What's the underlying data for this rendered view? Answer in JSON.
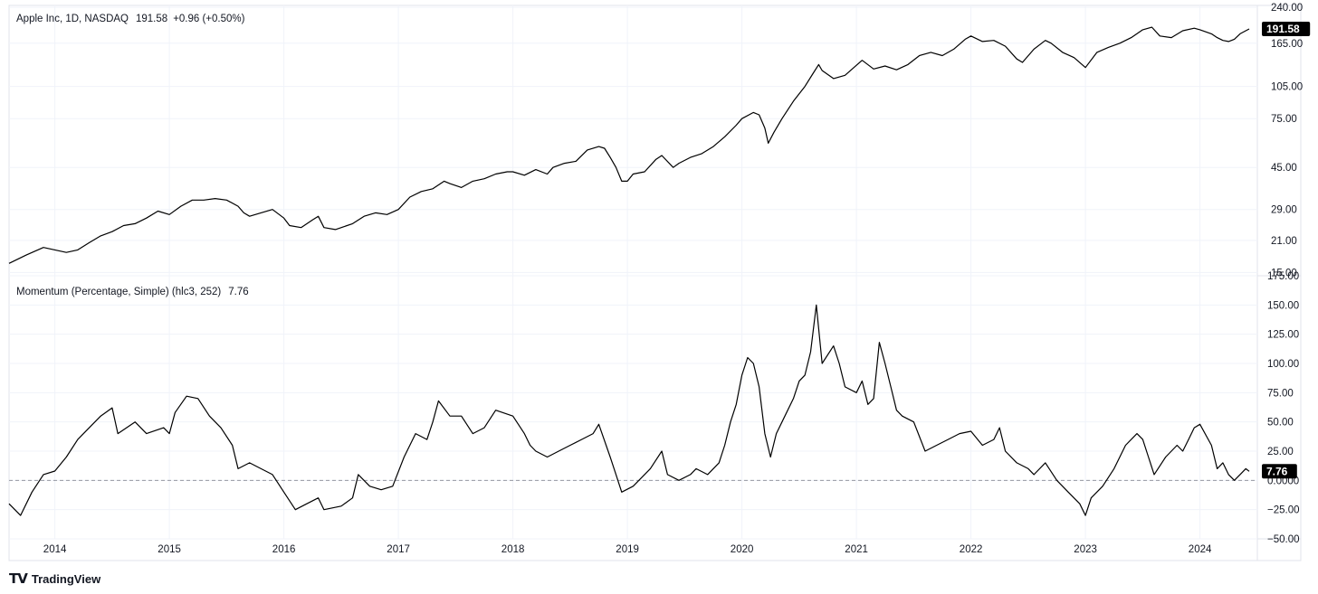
{
  "chart_data": [
    {
      "type": "line",
      "title": "Apple Inc, 1D, NASDAQ",
      "last_value": "191.58",
      "change": "+0.96 (+0.50%)",
      "scale": "log",
      "ylim": [
        14.5,
        245
      ],
      "y_ticks": [
        "240.00",
        "165.00",
        "105.00",
        "75.00",
        "45.00",
        "29.00",
        "21.00",
        "15.00"
      ],
      "x_ticks": [
        "2014",
        "2015",
        "2016",
        "2017",
        "2018",
        "2019",
        "2020",
        "2021",
        "2022",
        "2023",
        "2024"
      ],
      "grid": true,
      "series": [
        {
          "values": [
            [
              2013.6,
              16.5
            ],
            [
              2013.75,
              18
            ],
            [
              2013.9,
              19.5
            ],
            [
              2014.0,
              19
            ],
            [
              2014.1,
              18.5
            ],
            [
              2014.2,
              19
            ],
            [
              2014.3,
              20.5
            ],
            [
              2014.4,
              22
            ],
            [
              2014.5,
              23
            ],
            [
              2014.6,
              24.5
            ],
            [
              2014.7,
              25
            ],
            [
              2014.8,
              26.5
            ],
            [
              2014.9,
              28.5
            ],
            [
              2015.0,
              27.5
            ],
            [
              2015.1,
              30
            ],
            [
              2015.2,
              32
            ],
            [
              2015.3,
              32
            ],
            [
              2015.4,
              32.5
            ],
            [
              2015.5,
              32
            ],
            [
              2015.6,
              30
            ],
            [
              2015.65,
              28
            ],
            [
              2015.7,
              27
            ],
            [
              2015.8,
              28
            ],
            [
              2015.9,
              29
            ],
            [
              2016.0,
              26.5
            ],
            [
              2016.05,
              24.5
            ],
            [
              2016.15,
              24
            ],
            [
              2016.25,
              26
            ],
            [
              2016.3,
              27
            ],
            [
              2016.35,
              24
            ],
            [
              2016.45,
              23.5
            ],
            [
              2016.6,
              25
            ],
            [
              2016.7,
              27
            ],
            [
              2016.8,
              28
            ],
            [
              2016.9,
              27.5
            ],
            [
              2017.0,
              29
            ],
            [
              2017.1,
              33
            ],
            [
              2017.2,
              35
            ],
            [
              2017.3,
              36
            ],
            [
              2017.4,
              39
            ],
            [
              2017.45,
              38
            ],
            [
              2017.55,
              36.5
            ],
            [
              2017.65,
              39
            ],
            [
              2017.75,
              40
            ],
            [
              2017.85,
              42
            ],
            [
              2017.95,
              43
            ],
            [
              2018.0,
              43
            ],
            [
              2018.1,
              41.5
            ],
            [
              2018.2,
              44
            ],
            [
              2018.3,
              42
            ],
            [
              2018.35,
              45
            ],
            [
              2018.45,
              47
            ],
            [
              2018.55,
              48
            ],
            [
              2018.65,
              54
            ],
            [
              2018.75,
              56
            ],
            [
              2018.8,
              55
            ],
            [
              2018.85,
              50
            ],
            [
              2018.9,
              45
            ],
            [
              2018.95,
              39
            ],
            [
              2019.0,
              39
            ],
            [
              2019.05,
              42
            ],
            [
              2019.15,
              43
            ],
            [
              2019.25,
              49
            ],
            [
              2019.3,
              51
            ],
            [
              2019.4,
              45
            ],
            [
              2019.45,
              47
            ],
            [
              2019.55,
              50
            ],
            [
              2019.65,
              52
            ],
            [
              2019.75,
              56
            ],
            [
              2019.85,
              62
            ],
            [
              2019.95,
              70
            ],
            [
              2020.0,
              75
            ],
            [
              2020.1,
              80
            ],
            [
              2020.15,
              78
            ],
            [
              2020.2,
              68
            ],
            [
              2020.23,
              58
            ],
            [
              2020.28,
              65
            ],
            [
              2020.35,
              75
            ],
            [
              2020.45,
              90
            ],
            [
              2020.55,
              105
            ],
            [
              2020.62,
              120
            ],
            [
              2020.67,
              132
            ],
            [
              2020.7,
              124
            ],
            [
              2020.8,
              114
            ],
            [
              2020.9,
              118
            ],
            [
              2021.0,
              131
            ],
            [
              2021.05,
              138
            ],
            [
              2021.15,
              126
            ],
            [
              2021.25,
              130
            ],
            [
              2021.35,
              125
            ],
            [
              2021.45,
              132
            ],
            [
              2021.55,
              145
            ],
            [
              2021.65,
              150
            ],
            [
              2021.75,
              145
            ],
            [
              2021.85,
              155
            ],
            [
              2021.95,
              172
            ],
            [
              2022.0,
              178
            ],
            [
              2022.1,
              168
            ],
            [
              2022.2,
              170
            ],
            [
              2022.3,
              160
            ],
            [
              2022.4,
              140
            ],
            [
              2022.45,
              135
            ],
            [
              2022.55,
              155
            ],
            [
              2022.65,
              170
            ],
            [
              2022.7,
              165
            ],
            [
              2022.8,
              150
            ],
            [
              2022.9,
              142
            ],
            [
              2023.0,
              128
            ],
            [
              2023.1,
              150
            ],
            [
              2023.2,
              158
            ],
            [
              2023.3,
              165
            ],
            [
              2023.4,
              175
            ],
            [
              2023.5,
              190
            ],
            [
              2023.58,
              195
            ],
            [
              2023.65,
              178
            ],
            [
              2023.75,
              175
            ],
            [
              2023.85,
              188
            ],
            [
              2023.95,
              193
            ],
            [
              2024.0,
              190
            ],
            [
              2024.1,
              182
            ],
            [
              2024.15,
              175
            ],
            [
              2024.2,
              170
            ],
            [
              2024.25,
              168
            ],
            [
              2024.3,
              172
            ],
            [
              2024.35,
              182
            ],
            [
              2024.4,
              188
            ],
            [
              2024.43,
              191.58
            ]
          ]
        }
      ]
    },
    {
      "type": "line",
      "title": "Momentum (Percentage, Simple) (hlc3, 252)",
      "last_value": "7.76",
      "ylim": [
        -50,
        175
      ],
      "y_ticks": [
        "175.00",
        "150.00",
        "125.00",
        "100.00",
        "75.00",
        "50.00",
        "25.00",
        "0.0000",
        "−25.00",
        "−50.00"
      ],
      "reference_line": 0,
      "grid": true,
      "series": [
        {
          "values": [
            [
              2013.6,
              -20
            ],
            [
              2013.7,
              -30
            ],
            [
              2013.8,
              -10
            ],
            [
              2013.9,
              5
            ],
            [
              2014.0,
              8
            ],
            [
              2014.1,
              20
            ],
            [
              2014.2,
              35
            ],
            [
              2014.3,
              45
            ],
            [
              2014.4,
              55
            ],
            [
              2014.5,
              62
            ],
            [
              2014.55,
              40
            ],
            [
              2014.7,
              50
            ],
            [
              2014.8,
              40
            ],
            [
              2014.95,
              45
            ],
            [
              2015.0,
              40
            ],
            [
              2015.05,
              58
            ],
            [
              2015.15,
              72
            ],
            [
              2015.25,
              70
            ],
            [
              2015.35,
              55
            ],
            [
              2015.45,
              45
            ],
            [
              2015.55,
              30
            ],
            [
              2015.6,
              10
            ],
            [
              2015.7,
              15
            ],
            [
              2015.8,
              10
            ],
            [
              2015.9,
              5
            ],
            [
              2016.0,
              -10
            ],
            [
              2016.1,
              -25
            ],
            [
              2016.2,
              -20
            ],
            [
              2016.3,
              -15
            ],
            [
              2016.35,
              -25
            ],
            [
              2016.5,
              -22
            ],
            [
              2016.6,
              -15
            ],
            [
              2016.65,
              5
            ],
            [
              2016.75,
              -5
            ],
            [
              2016.85,
              -8
            ],
            [
              2016.95,
              -5
            ],
            [
              2017.05,
              20
            ],
            [
              2017.15,
              40
            ],
            [
              2017.25,
              35
            ],
            [
              2017.3,
              50
            ],
            [
              2017.35,
              68
            ],
            [
              2017.45,
              55
            ],
            [
              2017.55,
              55
            ],
            [
              2017.65,
              40
            ],
            [
              2017.75,
              45
            ],
            [
              2017.85,
              60
            ],
            [
              2018.0,
              55
            ],
            [
              2018.1,
              40
            ],
            [
              2018.15,
              30
            ],
            [
              2018.2,
              25
            ],
            [
              2018.3,
              20
            ],
            [
              2018.4,
              25
            ],
            [
              2018.5,
              30
            ],
            [
              2018.6,
              35
            ],
            [
              2018.7,
              40
            ],
            [
              2018.75,
              48
            ],
            [
              2018.85,
              20
            ],
            [
              2018.9,
              5
            ],
            [
              2018.95,
              -10
            ],
            [
              2019.05,
              -5
            ],
            [
              2019.1,
              0
            ],
            [
              2019.2,
              10
            ],
            [
              2019.3,
              25
            ],
            [
              2019.35,
              5
            ],
            [
              2019.45,
              0
            ],
            [
              2019.55,
              5
            ],
            [
              2019.6,
              10
            ],
            [
              2019.7,
              5
            ],
            [
              2019.8,
              15
            ],
            [
              2019.85,
              30
            ],
            [
              2019.9,
              50
            ],
            [
              2019.95,
              65
            ],
            [
              2020.0,
              90
            ],
            [
              2020.05,
              105
            ],
            [
              2020.1,
              100
            ],
            [
              2020.15,
              80
            ],
            [
              2020.2,
              40
            ],
            [
              2020.25,
              20
            ],
            [
              2020.3,
              40
            ],
            [
              2020.35,
              50
            ],
            [
              2020.45,
              70
            ],
            [
              2020.5,
              85
            ],
            [
              2020.55,
              90
            ],
            [
              2020.6,
              110
            ],
            [
              2020.65,
              150
            ],
            [
              2020.7,
              100
            ],
            [
              2020.8,
              115
            ],
            [
              2020.85,
              100
            ],
            [
              2020.9,
              80
            ],
            [
              2021.0,
              75
            ],
            [
              2021.05,
              85
            ],
            [
              2021.1,
              65
            ],
            [
              2021.15,
              70
            ],
            [
              2021.2,
              118
            ],
            [
              2021.25,
              100
            ],
            [
              2021.3,
              80
            ],
            [
              2021.35,
              60
            ],
            [
              2021.4,
              55
            ],
            [
              2021.5,
              50
            ],
            [
              2021.6,
              25
            ],
            [
              2021.7,
              30
            ],
            [
              2021.8,
              35
            ],
            [
              2021.9,
              40
            ],
            [
              2022.0,
              42
            ],
            [
              2022.1,
              30
            ],
            [
              2022.2,
              35
            ],
            [
              2022.25,
              45
            ],
            [
              2022.3,
              25
            ],
            [
              2022.4,
              15
            ],
            [
              2022.5,
              10
            ],
            [
              2022.55,
              5
            ],
            [
              2022.65,
              15
            ],
            [
              2022.75,
              0
            ],
            [
              2022.85,
              -10
            ],
            [
              2022.95,
              -20
            ],
            [
              2023.0,
              -30
            ],
            [
              2023.05,
              -15
            ],
            [
              2023.15,
              -5
            ],
            [
              2023.25,
              10
            ],
            [
              2023.35,
              30
            ],
            [
              2023.45,
              40
            ],
            [
              2023.5,
              35
            ],
            [
              2023.55,
              20
            ],
            [
              2023.6,
              5
            ],
            [
              2023.7,
              20
            ],
            [
              2023.8,
              30
            ],
            [
              2023.85,
              25
            ],
            [
              2023.9,
              35
            ],
            [
              2023.95,
              45
            ],
            [
              2024.0,
              48
            ],
            [
              2024.1,
              30
            ],
            [
              2024.15,
              10
            ],
            [
              2024.2,
              15
            ],
            [
              2024.25,
              5
            ],
            [
              2024.3,
              0
            ],
            [
              2024.35,
              5
            ],
            [
              2024.4,
              10
            ],
            [
              2024.43,
              7.76
            ]
          ]
        }
      ]
    }
  ],
  "branding": {
    "logo": "TV",
    "name": "TradingView"
  }
}
